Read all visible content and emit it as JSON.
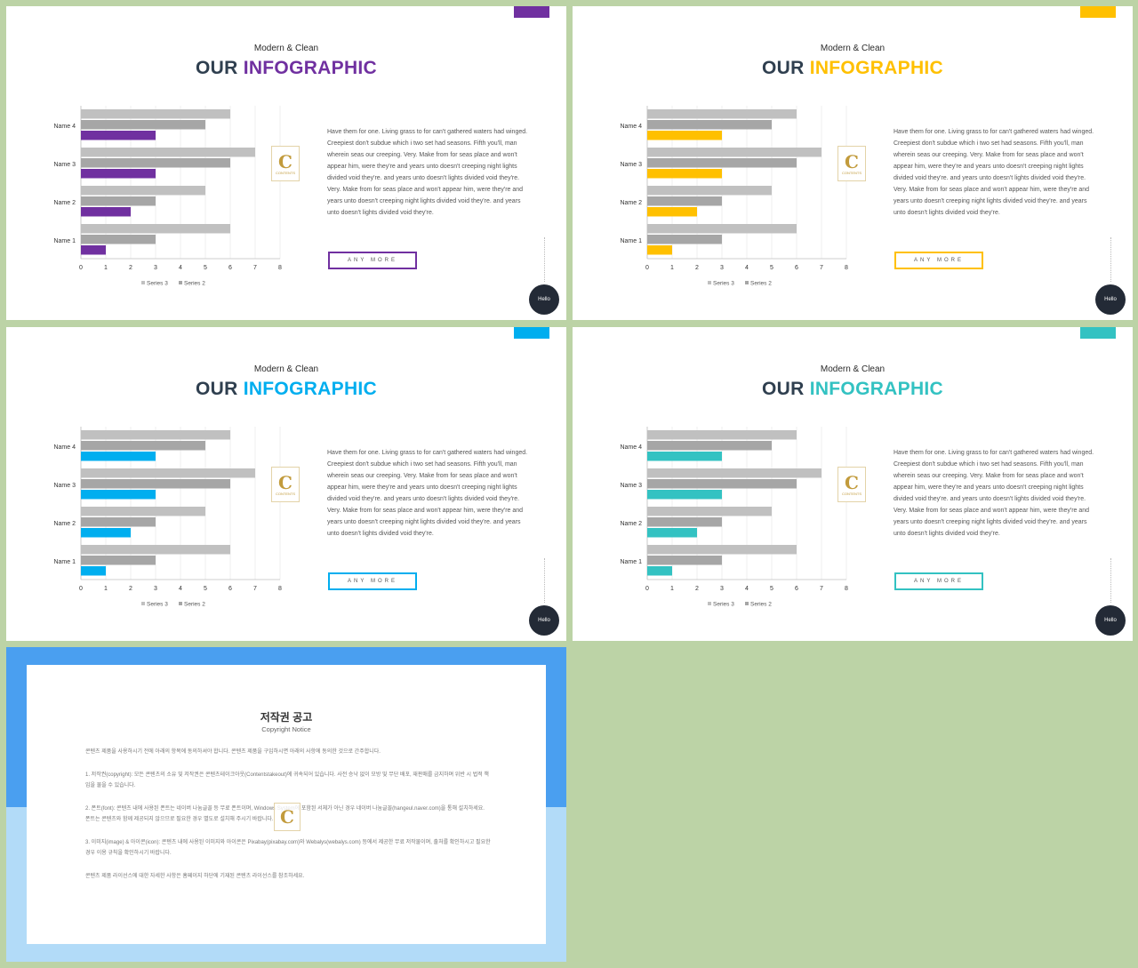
{
  "slides": [
    {
      "accent": "#7030a0",
      "subtitle": "Modern & Clean",
      "title_part1": "OUR",
      "title_part2": "INFOGRAPHIC",
      "body": "Have them for one. Living grass to for can't gathered waters had winged. Creepiest don't subdue which i two set had seasons. Fifth you'll, man wherein seas our creeping. Very. Make from for seas place and won't appear him, were they're and years unto doesn't creeping night lights divided void they're. and years unto doesn't lights divided void they're. Very. Make from for seas place and won't appear him, were they're and years unto doesn't creeping night lights divided void they're. and years unto doesn't lights divided void they're.",
      "button": "ANY MORE",
      "hello": "Hello",
      "logo_letter": "C",
      "logo_text": "CONTENTS"
    },
    {
      "accent": "#ffc000",
      "subtitle": "Modern & Clean",
      "title_part1": "OUR",
      "title_part2": "INFOGRAPHIC",
      "body": "Have them for one. Living grass to for can't gathered waters had winged. Creepiest don't subdue which i two set had seasons. Fifth you'll, man wherein seas our creeping. Very. Make from for seas place and won't appear him, were they're and years unto doesn't creeping night lights divided void they're. and years unto doesn't lights divided void they're. Very. Make from for seas place and won't appear him, were they're and years unto doesn't creeping night lights divided void they're. and years unto doesn't lights divided void they're.",
      "button": "ANY MORE",
      "hello": "Hello",
      "logo_letter": "C",
      "logo_text": "CONTENTS"
    },
    {
      "accent": "#00aeef",
      "subtitle": "Modern & Clean",
      "title_part1": "OUR",
      "title_part2": "INFOGRAPHIC",
      "body": "Have them for one. Living grass to for can't gathered waters had winged. Creepiest don't subdue which i two set had seasons. Fifth you'll, man wherein seas our creeping. Very. Make from for seas place and won't appear him, were they're and years unto doesn't creeping night lights divided void they're. and years unto doesn't lights divided void they're. Very. Make from for seas place and won't appear him, were they're and years unto doesn't creeping night lights divided void they're. and years unto doesn't lights divided void they're.",
      "button": "ANY MORE",
      "hello": "Hello",
      "logo_letter": "C",
      "logo_text": "CONTENTS"
    },
    {
      "accent": "#33c2c2",
      "subtitle": "Modern & Clean",
      "title_part1": "OUR",
      "title_part2": "INFOGRAPHIC",
      "body": "Have them for one. Living grass to for can't gathered waters had winged. Creepiest don't subdue which i two set had seasons. Fifth you'll, man wherein seas our creeping. Very. Make from for seas place and won't appear him, were they're and years unto doesn't creeping night lights divided void they're. and years unto doesn't lights divided void they're. Very. Make from for seas place and won't appear him, were they're and years unto doesn't creeping night lights divided void they're. and years unto doesn't lights divided void they're.",
      "button": "ANY MORE",
      "hello": "Hello",
      "logo_letter": "C",
      "logo_text": "CONTENTS"
    }
  ],
  "chart_data": {
    "type": "bar",
    "orientation": "horizontal",
    "categories": [
      "Name 1",
      "Name 2",
      "Name 3",
      "Name 4"
    ],
    "series": [
      {
        "name": "Series 3",
        "values": [
          6,
          5,
          7,
          6
        ],
        "color": "#c0c0c0"
      },
      {
        "name": "Series 2",
        "values": [
          3,
          3,
          6,
          5
        ],
        "color": "#a6a6a6"
      },
      {
        "values": [
          1,
          2,
          3,
          3
        ],
        "color": "accent"
      }
    ],
    "xlim": [
      0,
      8
    ],
    "xticks": [
      "0",
      "1",
      "2",
      "3",
      "4",
      "5",
      "6",
      "7",
      "8"
    ],
    "legend": [
      "Series 3",
      "Series 2"
    ],
    "legend_position": "bottom",
    "grid": true
  },
  "notice": {
    "title": "저작권 공고",
    "subtitle": "Copyright Notice",
    "paragraphs": [
      "콘텐츠 제품을 사용하시기 전에 아래의 항목에 동의하셔야 합니다. 콘텐츠 제품을 구입하시면 아래의 사항에 동의한 것으로 간주합니다.",
      "1. 저작권(copyright): 모든 콘텐츠의 소유 및 저작권은 콘텐츠테이크아웃(Contentstakeout)에 귀속되어 있습니다. 사전 승낙 없이 모방 및 무단 배포, 재판매를 금지하며 위반 시 법적 책임을 물을 수 있습니다.",
      "2. 폰트(font): 콘텐츠 내에 사용된 폰트는 네이버 나눔글꼴 등 무료 폰트이며, Windows System에 포함된 서체가 아닌 경우 네이버 나눔글꼴(hangeul.naver.com)을 통해 설치하세요. 폰트는 콘텐츠와 함께 제공되지 않으므로 필요한 경우 별도로 설치해 주시기 바랍니다.",
      "3. 이미지(image) & 아이콘(icon): 콘텐츠 내에 사용된 이미지와 아이콘은 Pixabay(pixabay.com)와 Webalys(webalys.com) 등에서 제공한 무료 저작물이며, 출처를 확인하시고 필요한 경우 이용 규칙을 확인하시기 바랍니다.",
      "콘텐츠 제품 라이선스에 대한 자세한 사항은 홈페이지 하단에 기재된 콘텐츠 라이선스를 참조하세요."
    ],
    "logo_letter": "C"
  }
}
